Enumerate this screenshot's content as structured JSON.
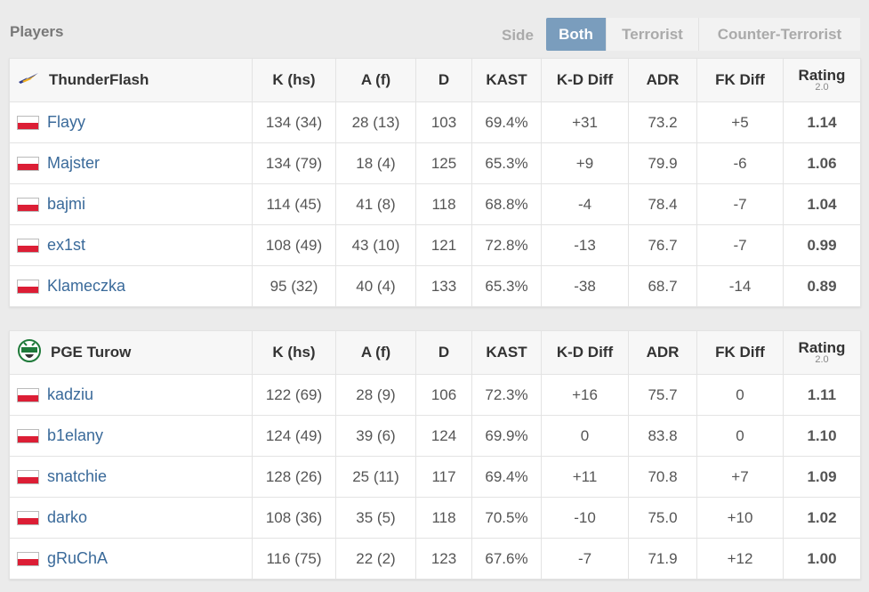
{
  "header": {
    "section_title": "Players",
    "side_label": "Side",
    "tabs": [
      {
        "label": "Both",
        "active": true
      },
      {
        "label": "Terrorist",
        "active": false
      },
      {
        "label": "Counter-Terrorist",
        "active": false
      }
    ]
  },
  "columns": {
    "kills": "K (hs)",
    "assists": "A (f)",
    "deaths": "D",
    "kast": "KAST",
    "kd_diff": "K-D Diff",
    "adr": "ADR",
    "fk_diff": "FK Diff",
    "rating": "Rating",
    "rating_version": "2.0"
  },
  "colors": {
    "positive": "#1e9b1e",
    "negative": "#d32b2b",
    "active_tab": "#7a9dbd",
    "player_link": "#3a6a9a"
  },
  "teams": [
    {
      "name": "ThunderFlash",
      "logo": "lightning-bolt-logo",
      "players": [
        {
          "flag": "poland-flag",
          "name": "Flayy",
          "kills": "134 (34)",
          "assists": "28 (13)",
          "deaths": "103",
          "kast": "69.4%",
          "kd_diff": "+31",
          "adr": "73.2",
          "fk_diff": "+5",
          "rating": "1.14"
        },
        {
          "flag": "poland-flag",
          "name": "Majster",
          "kills": "134 (79)",
          "assists": "18 (4)",
          "deaths": "125",
          "kast": "65.3%",
          "kd_diff": "+9",
          "adr": "79.9",
          "fk_diff": "-6",
          "rating": "1.06"
        },
        {
          "flag": "poland-flag",
          "name": "bajmi",
          "kills": "114 (45)",
          "assists": "41 (8)",
          "deaths": "118",
          "kast": "68.8%",
          "kd_diff": "-4",
          "adr": "78.4",
          "fk_diff": "-7",
          "rating": "1.04"
        },
        {
          "flag": "poland-flag",
          "name": "ex1st",
          "kills": "108 (49)",
          "assists": "43 (10)",
          "deaths": "121",
          "kast": "72.8%",
          "kd_diff": "-13",
          "adr": "76.7",
          "fk_diff": "-7",
          "rating": "0.99"
        },
        {
          "flag": "poland-flag",
          "name": "Klameczka",
          "kills": "95 (32)",
          "assists": "40 (4)",
          "deaths": "133",
          "kast": "65.3%",
          "kd_diff": "-38",
          "adr": "68.7",
          "fk_diff": "-14",
          "rating": "0.89"
        }
      ]
    },
    {
      "name": "PGE Turow",
      "logo": "turow-crest-logo",
      "players": [
        {
          "flag": "poland-flag",
          "name": "kadziu",
          "kills": "122 (69)",
          "assists": "28 (9)",
          "deaths": "106",
          "kast": "72.3%",
          "kd_diff": "+16",
          "adr": "75.7",
          "fk_diff": "0",
          "rating": "1.11"
        },
        {
          "flag": "poland-flag",
          "name": "b1elany",
          "kills": "124 (49)",
          "assists": "39 (6)",
          "deaths": "124",
          "kast": "69.9%",
          "kd_diff": "0",
          "adr": "83.8",
          "fk_diff": "0",
          "rating": "1.10"
        },
        {
          "flag": "poland-flag",
          "name": "snatchie",
          "kills": "128 (26)",
          "assists": "25 (11)",
          "deaths": "117",
          "kast": "69.4%",
          "kd_diff": "+11",
          "adr": "70.8",
          "fk_diff": "+7",
          "rating": "1.09"
        },
        {
          "flag": "poland-flag",
          "name": "darko",
          "kills": "108 (36)",
          "assists": "35 (5)",
          "deaths": "118",
          "kast": "70.5%",
          "kd_diff": "-10",
          "adr": "75.0",
          "fk_diff": "+10",
          "rating": "1.02"
        },
        {
          "flag": "poland-flag",
          "name": "gRuChA",
          "kills": "116 (75)",
          "assists": "22 (2)",
          "deaths": "123",
          "kast": "67.6%",
          "kd_diff": "-7",
          "adr": "71.9",
          "fk_diff": "+12",
          "rating": "1.00"
        }
      ]
    }
  ]
}
